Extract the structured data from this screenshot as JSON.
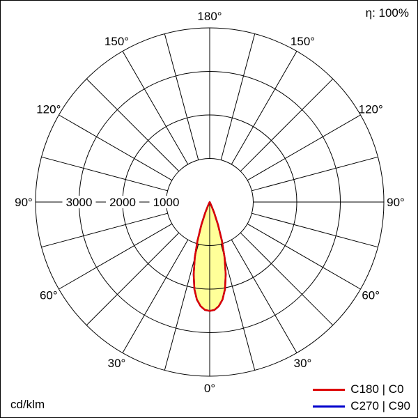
{
  "chart_data": {
    "type": "polar",
    "description": "Luminous intensity distribution polar curve, 0 degrees at bottom (nadir), grid spokes every 15 degrees",
    "unit": "cd/klm",
    "efficiency": "η: 100%",
    "radial_ticks": [
      1000,
      2000,
      3000
    ],
    "radial_max": 4000,
    "spoke_step_deg": 15,
    "angle_labels_deg": [
      0,
      30,
      60,
      90,
      120,
      150,
      180
    ],
    "angle_unit": "°",
    "series": [
      {
        "name": "C270 | C90",
        "color": "#0000cc",
        "fill": null,
        "points": [
          [
            0,
            2500
          ],
          [
            2.5,
            2480
          ],
          [
            5,
            2400
          ],
          [
            7.5,
            2260
          ],
          [
            10,
            2030
          ],
          [
            12.5,
            1700
          ],
          [
            15,
            1320
          ],
          [
            17.5,
            930
          ],
          [
            20,
            560
          ],
          [
            22.5,
            270
          ],
          [
            25,
            100
          ],
          [
            27.5,
            25
          ],
          [
            30,
            0
          ]
        ]
      },
      {
        "name": "C180 | C0",
        "color": "#dd0000",
        "fill": "#ffff99",
        "points": [
          [
            0,
            2500
          ],
          [
            2.5,
            2480
          ],
          [
            5,
            2400
          ],
          [
            7.5,
            2260
          ],
          [
            10,
            2030
          ],
          [
            12.5,
            1700
          ],
          [
            15,
            1320
          ],
          [
            17.5,
            930
          ],
          [
            20,
            560
          ],
          [
            22.5,
            270
          ],
          [
            25,
            100
          ],
          [
            27.5,
            25
          ],
          [
            30,
            0
          ]
        ]
      }
    ]
  },
  "legend": {
    "entries": [
      {
        "label": "C180 | C0",
        "color": "#dd0000"
      },
      {
        "label": "C270 | C90",
        "color": "#0000cc"
      }
    ]
  }
}
